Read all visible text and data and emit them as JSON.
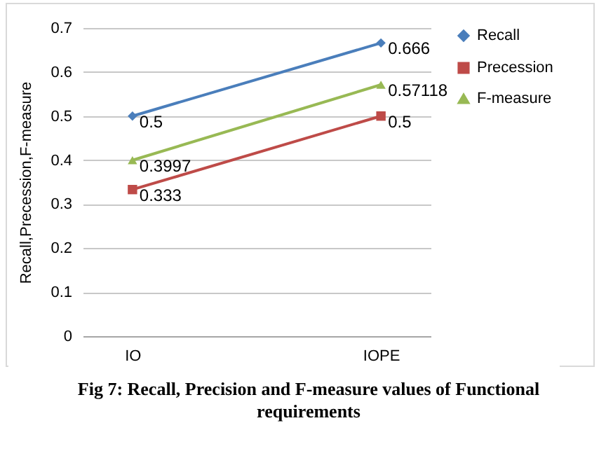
{
  "chart_data": {
    "type": "line",
    "ylabel": "Recall,Precession,F-measure",
    "categories": [
      "IO",
      "IOPE"
    ],
    "series": [
      {
        "name": "Recall",
        "color": "#4a7ebb",
        "marker": "diamond",
        "values": [
          0.5,
          0.666
        ]
      },
      {
        "name": "Precession",
        "color": "#be4b48",
        "marker": "square",
        "values": [
          0.333,
          0.5
        ]
      },
      {
        "name": "F-measure",
        "color": "#98b954",
        "marker": "triangle",
        "values": [
          0.3997,
          0.57118
        ]
      }
    ],
    "ylim": [
      0,
      0.7
    ],
    "yticks": [
      0,
      0.1,
      0.2,
      0.3,
      0.4,
      0.5,
      0.6,
      0.7
    ],
    "grid": "y",
    "legend": "right",
    "data_labels": true,
    "annotations": [
      "Fig 7: Recall, Precision and F-measure values of Functional requirements"
    ]
  }
}
